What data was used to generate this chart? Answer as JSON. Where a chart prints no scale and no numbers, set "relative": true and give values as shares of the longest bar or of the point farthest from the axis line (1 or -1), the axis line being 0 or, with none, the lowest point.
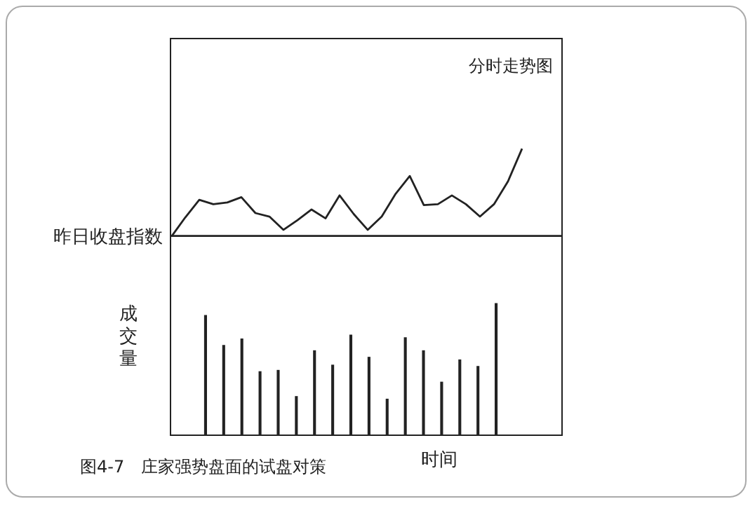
{
  "chart_data": [
    {
      "type": "line",
      "title": "分时走势图",
      "relative": true,
      "color": "#222222",
      "marker": "none",
      "line_style": "solid",
      "legend": false,
      "categories": [
        null,
        null,
        null,
        null,
        null,
        null,
        null,
        null,
        null,
        null,
        null,
        null,
        null,
        null,
        null,
        null,
        null,
        null,
        null,
        null,
        null,
        null,
        null,
        null,
        null,
        null
      ],
      "values": [
        0,
        0.22,
        0.42,
        0.37,
        0.39,
        0.45,
        0.27,
        0.23,
        0.08,
        0.19,
        0.31,
        0.21,
        0.47,
        0.26,
        0.08,
        0.23,
        0.49,
        0.69,
        0.36,
        0.37,
        0.47,
        0.37,
        0.23,
        0.37,
        0.63,
        1
      ],
      "ref_lines": [
        {
          "axis": "y",
          "value": 0,
          "label": "昨日收盘指数"
        }
      ]
    },
    {
      "type": "bar",
      "relative": true,
      "color": "#222222",
      "xlabel": "时间",
      "ylabel": "成交量",
      "legend": false,
      "categories": [
        null,
        null,
        null,
        null,
        null,
        null,
        null,
        null,
        null,
        null,
        null,
        null,
        null,
        null,
        null,
        null,
        null
      ],
      "values": [
        0.91,
        0.68,
        0.73,
        0.48,
        0.49,
        0.29,
        0.64,
        0.53,
        0.76,
        0.59,
        0.27,
        0.74,
        0.64,
        0.4,
        0.57,
        0.52,
        1
      ],
      "annotations": [
        "图4-7　庄家强势盘面的试盘对策"
      ]
    }
  ]
}
